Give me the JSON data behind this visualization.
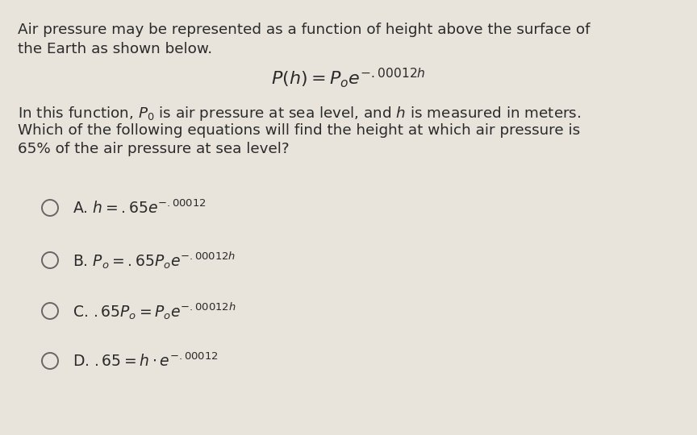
{
  "background_color": "#e8e4dc",
  "text_color": "#2a2a2a",
  "figsize": [
    8.64,
    5.4
  ],
  "dpi": 100,
  "intro_line1": "Air pressure may be represented as a function of height above the surface of",
  "intro_line2": "the Earth as shown below.",
  "formula": "$P(h) = P_o e^{-.00012h}$",
  "body_line1": "In this function, $P_0$ is air pressure at sea level, and $h$ is measured in meters.",
  "body_line2": "Which of the following equations will find the height at which air pressure is",
  "body_line3": "65% of the air pressure at sea level?",
  "options": [
    {
      "label": "A. ",
      "math": "$h = .65e^{-.00012}$"
    },
    {
      "label": "B. ",
      "math": "$P_o = .65P_o e^{-.00012h}$"
    },
    {
      "label": "C. ",
      "math": "$.65P_o = P_o e^{-.00012h}$"
    },
    {
      "label": "D. ",
      "math": "$.65 = h \\cdot e^{-.00012}$"
    }
  ],
  "intro_fontsize": 13.2,
  "formula_fontsize": 16,
  "body_fontsize": 13.2,
  "option_fontsize": 13.5,
  "circle_color": "#666666",
  "circle_linewidth": 1.4
}
